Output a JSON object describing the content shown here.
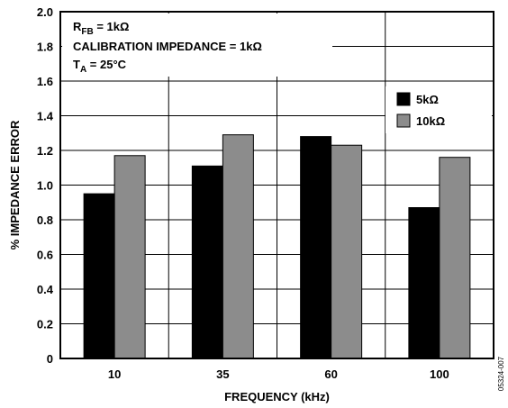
{
  "chart_data": {
    "type": "bar",
    "categories": [
      "10",
      "35",
      "60",
      "100"
    ],
    "series": [
      {
        "name": "5kΩ",
        "color": "#000000",
        "values": [
          0.95,
          1.11,
          1.28,
          0.87
        ]
      },
      {
        "name": "10kΩ",
        "color": "#8c8c8c",
        "values": [
          1.17,
          1.29,
          1.23,
          1.16
        ]
      }
    ],
    "xlabel": "FREQUENCY (kHz)",
    "ylabel": "% IMPEDANCE ERROR",
    "ylim": [
      0,
      2.0
    ],
    "yticks": [
      "0",
      "0.2",
      "0.4",
      "0.6",
      "0.8",
      "1.0",
      "1.2",
      "1.4",
      "1.6",
      "1.8",
      "2.0"
    ],
    "grid": true,
    "legend_position": "right",
    "annotations": {
      "rfb": {
        "main": "R",
        "sub": "FB",
        "rest": " = 1kΩ"
      },
      "calibration": "CALIBRATION IMPEDANCE = 1kΩ",
      "ta": {
        "main": "T",
        "sub": "A",
        "rest": " = 25°C"
      }
    },
    "figure_id": "05324-007"
  }
}
